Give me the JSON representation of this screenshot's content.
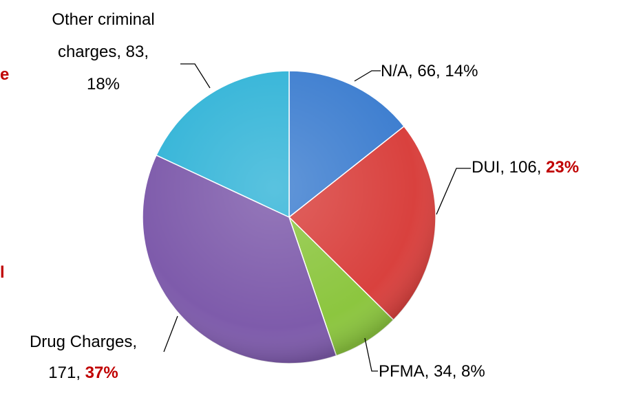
{
  "chart_data": {
    "type": "pie",
    "values": [
      66,
      106,
      34,
      171,
      83
    ],
    "value_labels": [
      [
        "N/A, 66, 14%"
      ],
      [
        "DUI, 106, 23%"
      ],
      [
        "PFMA, 34, 8%"
      ],
      [
        "Drug Charges,",
        "171, 37%"
      ],
      [
        "Other criminal",
        "charges, 83,",
        "18%"
      ]
    ],
    "highlight": [
      false,
      true,
      false,
      true,
      false
    ],
    "colors": [
      "#3f7fd0",
      "#d9413e",
      "#8cc63f",
      "#7e5bab",
      "#35b5d8"
    ],
    "highlight_color": "#c00000",
    "annotations": [
      "e",
      "l"
    ]
  }
}
